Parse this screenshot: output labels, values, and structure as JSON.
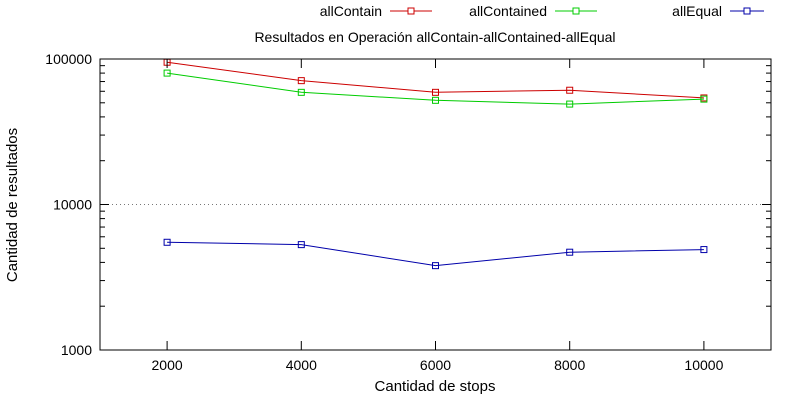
{
  "chart_data": {
    "type": "line",
    "title": "Resultados en Operación allContain-allContained-allEqual",
    "xlabel": "Cantidad de stops",
    "ylabel": "Cantidad de resultados",
    "x": [
      2000,
      4000,
      6000,
      8000,
      10000
    ],
    "xlim": [
      1000,
      11000
    ],
    "ylim": [
      1000,
      100000
    ],
    "yscale": "log",
    "x_ticks": [
      2000,
      4000,
      6000,
      8000,
      10000
    ],
    "x_tick_labels": [
      "2000",
      "4000",
      "6000",
      "8000",
      "10000"
    ],
    "y_ticks": [
      1000,
      10000,
      100000
    ],
    "y_tick_labels": [
      "1000",
      "10000",
      "100000"
    ],
    "grid": "dotted horizontal line at 10000",
    "legend_position": "top",
    "series": [
      {
        "name": "allContain",
        "color": "#cc0000",
        "marker": "open-square",
        "values": [
          95000,
          71000,
          59000,
          61000,
          54000
        ]
      },
      {
        "name": "allContained",
        "color": "#00cc00",
        "marker": "open-square",
        "values": [
          80000,
          59000,
          52000,
          49000,
          53000
        ]
      },
      {
        "name": "allEqual",
        "color": "#0000aa",
        "marker": "open-square",
        "values": [
          5500,
          5300,
          3800,
          4700,
          4900
        ]
      }
    ]
  }
}
